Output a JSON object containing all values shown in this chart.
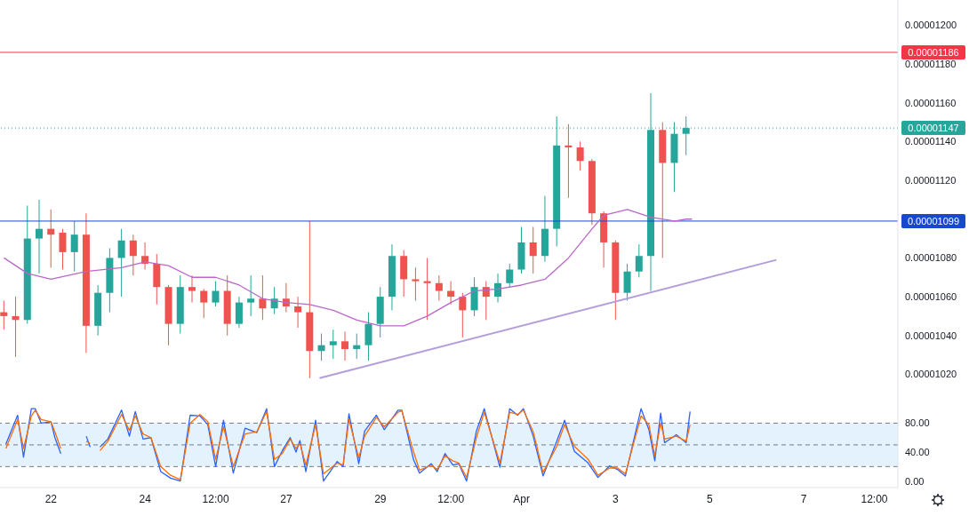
{
  "chart_data": [
    {
      "type": "candlestick",
      "x": [
        "--03-21T00:00",
        "--03-21T06:00",
        "--03-21T12:00",
        "--03-21T18:00",
        "--03-22T00:00",
        "--03-22T06:00",
        "--03-22T12:00",
        "--03-22T18:00",
        "--03-23T00:00",
        "--03-23T06:00",
        "--03-23T12:00",
        "--03-23T18:00",
        "--03-24T00:00",
        "--03-24T06:00",
        "--03-24T12:00",
        "--03-24T18:00",
        "--03-25T00:00",
        "--03-25T06:00",
        "--03-25T12:00",
        "--03-25T18:00",
        "--03-26T00:00",
        "--03-26T06:00",
        "--03-26T12:00",
        "--03-26T18:00",
        "--03-27T00:00",
        "--03-27T06:00",
        "--03-27T12:00",
        "--03-27T18:00",
        "--03-28T00:00",
        "--03-28T06:00",
        "--03-28T12:00",
        "--03-28T18:00",
        "--03-29T00:00",
        "--03-29T06:00",
        "--03-29T12:00",
        "--03-29T18:00",
        "--03-30T00:00",
        "--03-30T06:00",
        "--03-30T12:00",
        "--03-30T18:00",
        "--03-31T00:00",
        "--03-31T06:00",
        "--03-31T12:00",
        "--03-31T18:00",
        "--04-01T00:00",
        "--04-01T06:00",
        "--04-01T12:00",
        "--04-01T18:00",
        "--04-02T00:00",
        "--04-02T06:00",
        "--04-02T12:00",
        "--04-02T18:00",
        "--04-03T00:00",
        "--04-03T06:00",
        "--04-03T12:00",
        "--04-03T18:00",
        "--04-04T00:00",
        "--04-04T06:00",
        "--04-04T12:00"
      ],
      "ohlc": [
        [
          1.052e-05,
          1.058e-05,
          1.043e-05,
          1.05e-05
        ],
        [
          1.05e-05,
          1.06e-05,
          1.029e-05,
          1.048e-05
        ],
        [
          1.048e-05,
          1.107e-05,
          1.046e-05,
          1.09e-05
        ],
        [
          1.09e-05,
          1.11e-05,
          1.072e-05,
          1.095e-05
        ],
        [
          1.095e-05,
          1.105e-05,
          1.075e-05,
          1.092e-05
        ],
        [
          1.093e-05,
          1.095e-05,
          1.074e-05,
          1.083e-05
        ],
        [
          1.083e-05,
          1.099e-05,
          1.073e-05,
          1.092e-05
        ],
        [
          1.092e-05,
          1.103e-05,
          1.031e-05,
          1.045e-05
        ],
        [
          1.045e-05,
          1.066e-05,
          1.04e-05,
          1.062e-05
        ],
        [
          1.062e-05,
          1.085e-05,
          1.052e-05,
          1.08e-05
        ],
        [
          1.08e-05,
          1.095e-05,
          1.06e-05,
          1.089e-05
        ],
        [
          1.089e-05,
          1.092e-05,
          1.071e-05,
          1.081e-05
        ],
        [
          1.081e-05,
          1.088e-05,
          1.074e-05,
          1.077e-05
        ],
        [
          1.077e-05,
          1.082e-05,
          1.056e-05,
          1.065e-05
        ],
        [
          1.065e-05,
          1.066e-05,
          1.035e-05,
          1.046e-05
        ],
        [
          1.046e-05,
          1.071e-05,
          1.041e-05,
          1.065e-05
        ],
        [
          1.065e-05,
          1.071e-05,
          1.057e-05,
          1.063e-05
        ],
        [
          1.063e-05,
          1.064e-05,
          1.049e-05,
          1.057e-05
        ],
        [
          1.057e-05,
          1.068e-05,
          1.055e-05,
          1.063e-05
        ],
        [
          1.063e-05,
          1.071e-05,
          1.04e-05,
          1.046e-05
        ],
        [
          1.046e-05,
          1.06e-05,
          1.044e-05,
          1.057e-05
        ],
        [
          1.057e-05,
          1.071e-05,
          1.05e-05,
          1.059e-05
        ],
        [
          1.059e-05,
          1.071e-05,
          1.048e-05,
          1.054e-05
        ],
        [
          1.054e-05,
          1.065e-05,
          1.051e-05,
          1.059e-05
        ],
        [
          1.059e-05,
          1.067e-05,
          1.052e-05,
          1.055e-05
        ],
        [
          1.055e-05,
          1.06e-05,
          1.044e-05,
          1.052e-05
        ],
        [
          1.052e-05,
          1.099e-05,
          1.018e-05,
          1.032e-05
        ],
        [
          1.032e-05,
          1.041e-05,
          1.027e-05,
          1.035e-05
        ],
        [
          1.035e-05,
          1.043e-05,
          1.028e-05,
          1.037e-05
        ],
        [
          1.037e-05,
          1.042e-05,
          1.027e-05,
          1.033e-05
        ],
        [
          1.033e-05,
          1.041e-05,
          1.028e-05,
          1.035e-05
        ],
        [
          1.035e-05,
          1.052e-05,
          1.027e-05,
          1.046e-05
        ],
        [
          1.046e-05,
          1.065e-05,
          1.039e-05,
          1.06e-05
        ],
        [
          1.06e-05,
          1.087e-05,
          1.053e-05,
          1.081e-05
        ],
        [
          1.081e-05,
          1.084e-05,
          1.06e-05,
          1.069e-05
        ],
        [
          1.069e-05,
          1.075e-05,
          1.058e-05,
          1.068e-05
        ],
        [
          1.068e-05,
          1.08e-05,
          1.048e-05,
          1.067e-05
        ],
        [
          1.067e-05,
          1.071e-05,
          1.058e-05,
          1.063e-05
        ],
        [
          1.063e-05,
          1.068e-05,
          1.056e-05,
          1.06e-05
        ],
        [
          1.06e-05,
          1.062e-05,
          1.039e-05,
          1.053e-05
        ],
        [
          1.053e-05,
          1.07e-05,
          1.05e-05,
          1.065e-05
        ],
        [
          1.065e-05,
          1.068e-05,
          1.048e-05,
          1.06e-05
        ],
        [
          1.06e-05,
          1.072e-05,
          1.057e-05,
          1.067e-05
        ],
        [
          1.067e-05,
          1.077e-05,
          1.065e-05,
          1.074e-05
        ],
        [
          1.074e-05,
          1.096e-05,
          1.072e-05,
          1.088e-05
        ],
        [
          1.088e-05,
          1.096e-05,
          1.072e-05,
          1.081e-05
        ],
        [
          1.081e-05,
          1.112e-05,
          1.078e-05,
          1.095e-05
        ],
        [
          1.095e-05,
          1.153e-05,
          1.086e-05,
          1.138e-05
        ],
        [
          1.138e-05,
          1.149e-05,
          1.111e-05,
          1.137e-05
        ],
        [
          1.137e-05,
          1.14e-05,
          1.125e-05,
          1.13e-05
        ],
        [
          1.13e-05,
          1.131e-05,
          1.097e-05,
          1.103e-05
        ],
        [
          1.103e-05,
          1.104e-05,
          1.075e-05,
          1.088e-05
        ],
        [
          1.088e-05,
          1.089e-05,
          1.048e-05,
          1.062e-05
        ],
        [
          1.062e-05,
          1.077e-05,
          1.058e-05,
          1.073e-05
        ],
        [
          1.073e-05,
          1.087e-05,
          1.07e-05,
          1.081e-05
        ],
        [
          1.081e-05,
          1.165e-05,
          1.063e-05,
          1.146e-05
        ],
        [
          1.146e-05,
          1.15e-05,
          1.08e-05,
          1.129e-05
        ],
        [
          1.129e-05,
          1.15e-05,
          1.114e-05,
          1.144e-05
        ],
        [
          1.144e-05,
          1.153e-05,
          1.133e-05,
          1.147e-05
        ]
      ],
      "series": [
        {
          "type": "line",
          "color": "#ba68c8",
          "x": [
            "--03-21T00:00",
            "--03-21T12:00",
            "--03-22T00:00",
            "--03-22T18:00",
            "--03-23T12:00",
            "--03-24T00:00",
            "--03-24T12:00",
            "--03-25T00:00",
            "--03-25T12:00",
            "--03-26T00:00",
            "--03-26T12:00",
            "--03-27T00:00",
            "--03-27T12:00",
            "--03-28T00:00",
            "--03-28T12:00",
            "--03-29T00:00",
            "--03-29T12:00",
            "--03-30T00:00",
            "--03-30T12:00",
            "--03-31T00:00",
            "--03-31T12:00",
            "--04-01T00:00",
            "--04-01T12:00",
            "--04-02T00:00",
            "--04-02T12:00",
            "--04-02T18:00",
            "--04-03T06:00",
            "--04-03T18:00",
            "--04-04T06:00",
            "--04-04T12:00",
            "--04-04T15:00"
          ],
          "values": [
            1.08e-05,
            1.072e-05,
            1.069e-05,
            1.073e-05,
            1.075e-05,
            1.078e-05,
            1.076e-05,
            1.07e-05,
            1.07e-05,
            1.066e-05,
            1.059e-05,
            1.057e-05,
            1.056e-05,
            1.053e-05,
            1.048e-05,
            1.045e-05,
            1.045e-05,
            1.05e-05,
            1.057e-05,
            1.063e-05,
            1.064e-05,
            1.066e-05,
            1.069e-05,
            1.08e-05,
            1.095e-05,
            1.102e-05,
            1.105e-05,
            1.101e-05,
            1.099e-05,
            1.1e-05,
            1.1e-05
          ]
        },
        {
          "type": "line",
          "color": "#b39ddb",
          "x": [
            "--03-27T17:00",
            "--04-06T10:00"
          ],
          "values": [
            1.018e-05,
            1.079e-05
          ]
        }
      ],
      "xlim": [
        "--03-20T22:00",
        "--04-09T00:00"
      ],
      "ylim": [
        1.006e-05,
        1.213e-05
      ],
      "yticks": [
        {
          "value": 1.02e-05,
          "label": "0.00001020"
        },
        {
          "value": 1.04e-05,
          "label": "0.00001040"
        },
        {
          "value": 1.06e-05,
          "label": "0.00001060"
        },
        {
          "value": 1.08e-05,
          "label": "0.00001080"
        },
        {
          "value": 1.12e-05,
          "label": "0.00001120"
        },
        {
          "value": 1.14e-05,
          "label": "0.00001140"
        },
        {
          "value": 1.16e-05,
          "label": "0.00001160"
        },
        {
          "value": 1.18e-05,
          "label": "0.00001180"
        },
        {
          "value": 1.2e-05,
          "label": "0.00001200"
        }
      ],
      "ref_lines": [
        {
          "axis": "y",
          "value": 1.186e-05,
          "label": "0.00001186",
          "color": "#f23645"
        },
        {
          "axis": "y",
          "value": 1.147e-05,
          "label": "0.00001147",
          "color": "#26a69a",
          "line_style": "dotted"
        },
        {
          "axis": "y",
          "value": 1.099e-05,
          "label": "0.00001099",
          "color": "#1848cc"
        }
      ],
      "tick_labels": "y"
    },
    {
      "type": "line",
      "x": [
        "--03-21T01:00",
        "--03-21T07:00",
        "--03-21T10:00",
        "--03-21T14:00",
        "--03-21T16:00",
        "--03-21T19:00",
        "--03-22T00:00",
        "--03-22T02:00",
        "--03-22T05:00",
        "--03-22T09:00",
        "--03-22T18:00",
        "--03-22T20:00",
        "--03-22T23:00",
        "--03-23T01:00",
        "--03-23T05:00",
        "--03-23T12:00",
        "--03-23T16:00",
        "--03-23T19:00",
        "--03-23T23:00",
        "--03-24T03:00",
        "--03-24T08:00",
        "--03-24T13:00",
        "--03-24T18:00",
        "--03-24T23:00",
        "--03-25T04:00",
        "--03-25T08:00",
        "--03-25T12:00",
        "--03-25T16:00",
        "--03-25T21:00",
        "--03-26T03:00",
        "--03-26T09:00",
        "--03-26T14:00",
        "--03-26T18:00",
        "--03-26T22:00",
        "--03-27T02:00",
        "--03-27T05:00",
        "--03-27T07:00",
        "--03-27T10:00",
        "--03-27T15:00",
        "--03-27T19:00",
        "--03-28T02:00",
        "--03-28T05:00",
        "--03-28T08:00",
        "--03-28T13:00",
        "--03-28T16:00",
        "--03-28T22:00",
        "--03-29T02:00",
        "--03-29T09:00",
        "--03-29T11:00",
        "--03-29T17:00",
        "--03-29T20:00",
        "--03-30T02:00",
        "--03-30T05:00",
        "--03-30T09:00",
        "--03-30T13:00",
        "--03-30T16:00",
        "--03-30T20:00",
        "--03-31T01:00",
        "--03-31T05:00",
        "--03-31T13:00",
        "--03-31T18:00",
        "--03-31T22:00",
        "--04-01T01:00",
        "--04-01T06:00",
        "--04-01T11:00",
        "--04-01T18:00",
        "--04-01T22:00",
        "--04-02T03:00",
        "--04-02T10:00",
        "--04-02T15:00",
        "--04-02T21:00",
        "--04-03T01:00",
        "--04-03T05:00",
        "--04-03T13:00",
        "--04-03T17:00",
        "--04-03T20:00",
        "--04-03T23:00",
        "--04-04T01:00",
        "--04-04T07:00",
        "--04-04T12:00",
        "--04-04T14:00"
      ],
      "series": [
        {
          "color": "#2962ff",
          "values": [
            51,
            91,
            33,
            100,
            100,
            80,
            82,
            60,
            38,
            null,
            62,
            47,
            null,
            47,
            58,
            98,
            62,
            96,
            58,
            60,
            13,
            4,
            0,
            91,
            90,
            78,
            20,
            84,
            11,
            73,
            67,
            100,
            20,
            42,
            60,
            40,
            56,
            13,
            84,
            0,
            27,
            20,
            93,
            24,
            69,
            91,
            71,
            98,
            98,
            29,
            11,
            24,
            13,
            38,
            22,
            24,
            0,
            69,
            100,
            19,
            100,
            91,
            100,
            62,
            7,
            55,
            84,
            41,
            25,
            5,
            21,
            16,
            7,
            100,
            71,
            28,
            94,
            53,
            64,
            53,
            96
          ]
        },
        {
          "color": "#ff6d00",
          "values": [
            45,
            85,
            45,
            90,
            98,
            85,
            82,
            68,
            45,
            null,
            55,
            52,
            null,
            42,
            55,
            92,
            70,
            90,
            65,
            60,
            20,
            8,
            2,
            80,
            92,
            82,
            30,
            75,
            20,
            65,
            68,
            96,
            30,
            38,
            58,
            45,
            52,
            22,
            78,
            10,
            25,
            22,
            85,
            32,
            62,
            88,
            75,
            95,
            97,
            40,
            15,
            22,
            16,
            35,
            28,
            25,
            5,
            60,
            95,
            25,
            95,
            92,
            98,
            68,
            12,
            48,
            78,
            48,
            30,
            8,
            18,
            18,
            10,
            90,
            78,
            35,
            80,
            58,
            62,
            55,
            78
          ]
        }
      ],
      "xlim": [
        "--03-20T22:00",
        "--04-09T00:00"
      ],
      "xticks": [
        {
          "value": "--03-22",
          "label": "22"
        },
        {
          "value": "--03-24",
          "label": "24"
        },
        {
          "value": "--03-25T12:00",
          "label": "12:00"
        },
        {
          "value": "--03-27",
          "label": "27"
        },
        {
          "value": "--03-29",
          "label": "29"
        },
        {
          "value": "--03-30T12:00",
          "label": "12:00"
        },
        {
          "value": "--04-01",
          "label": "Apr"
        },
        {
          "value": "--04-03",
          "label": "3"
        },
        {
          "value": "--04-05",
          "label": "5"
        },
        {
          "value": "--04-07",
          "label": "7"
        },
        {
          "value": "--04-08T12:00",
          "label": "12:00"
        }
      ],
      "ylim": [
        -9,
        110
      ],
      "yticks": [
        {
          "value": 0,
          "label": "0.00"
        },
        {
          "value": 40,
          "label": "40.00"
        },
        {
          "value": 80,
          "label": "80.00"
        }
      ],
      "ref_lines": [
        {
          "axis": "y",
          "value": 80,
          "color": "#787b86",
          "line_style": "dashed"
        },
        {
          "axis": "y",
          "value": 50,
          "color": "#787b86",
          "line_style": "dashed"
        },
        {
          "axis": "y",
          "value": 20,
          "color": "#787b86",
          "line_style": "dashed"
        }
      ],
      "bands": [
        {
          "axis": "y",
          "from": 20,
          "to": 80,
          "color": "#e3f2fd"
        }
      ]
    }
  ]
}
